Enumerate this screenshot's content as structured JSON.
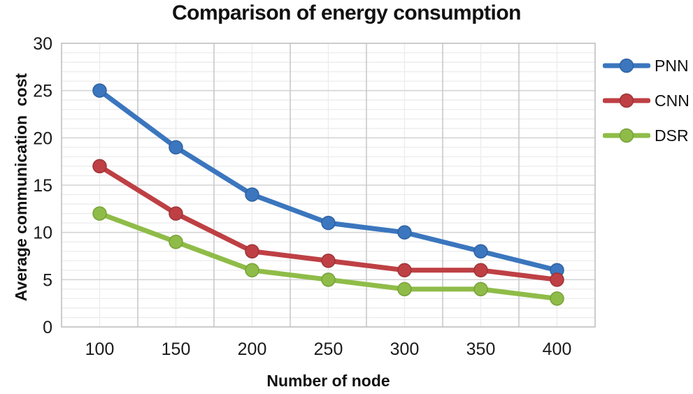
{
  "chart_data": {
    "type": "line",
    "title": "Comparison of energy consumption",
    "xlabel": "Number of node",
    "ylabel": "Average communication  cost",
    "categories": [
      100,
      150,
      200,
      250,
      300,
      350,
      400
    ],
    "series": [
      {
        "name": "PNN",
        "color": "#3b76be",
        "marker_stroke": "#2f62a3",
        "values": [
          25,
          19,
          14,
          11,
          10,
          8,
          6
        ]
      },
      {
        "name": "CNN",
        "color": "#be4044",
        "marker_stroke": "#9e3338",
        "values": [
          17,
          12,
          8,
          7,
          6,
          6,
          5
        ]
      },
      {
        "name": "DSR",
        "color": "#8fbc48",
        "marker_stroke": "#77a138",
        "values": [
          12,
          9,
          6,
          5,
          4,
          4,
          3
        ]
      }
    ],
    "ylim": [
      0,
      30
    ],
    "y_major_step": 5,
    "y_minor_step": 1,
    "grid": true,
    "legend_position": "right",
    "colors": {
      "grid_minor": "#ececec",
      "grid_major": "#d4d4d4",
      "grid_vertical_major": "#c9c9c9",
      "plot_border": "#bfbfbf",
      "text": "#111111"
    }
  }
}
